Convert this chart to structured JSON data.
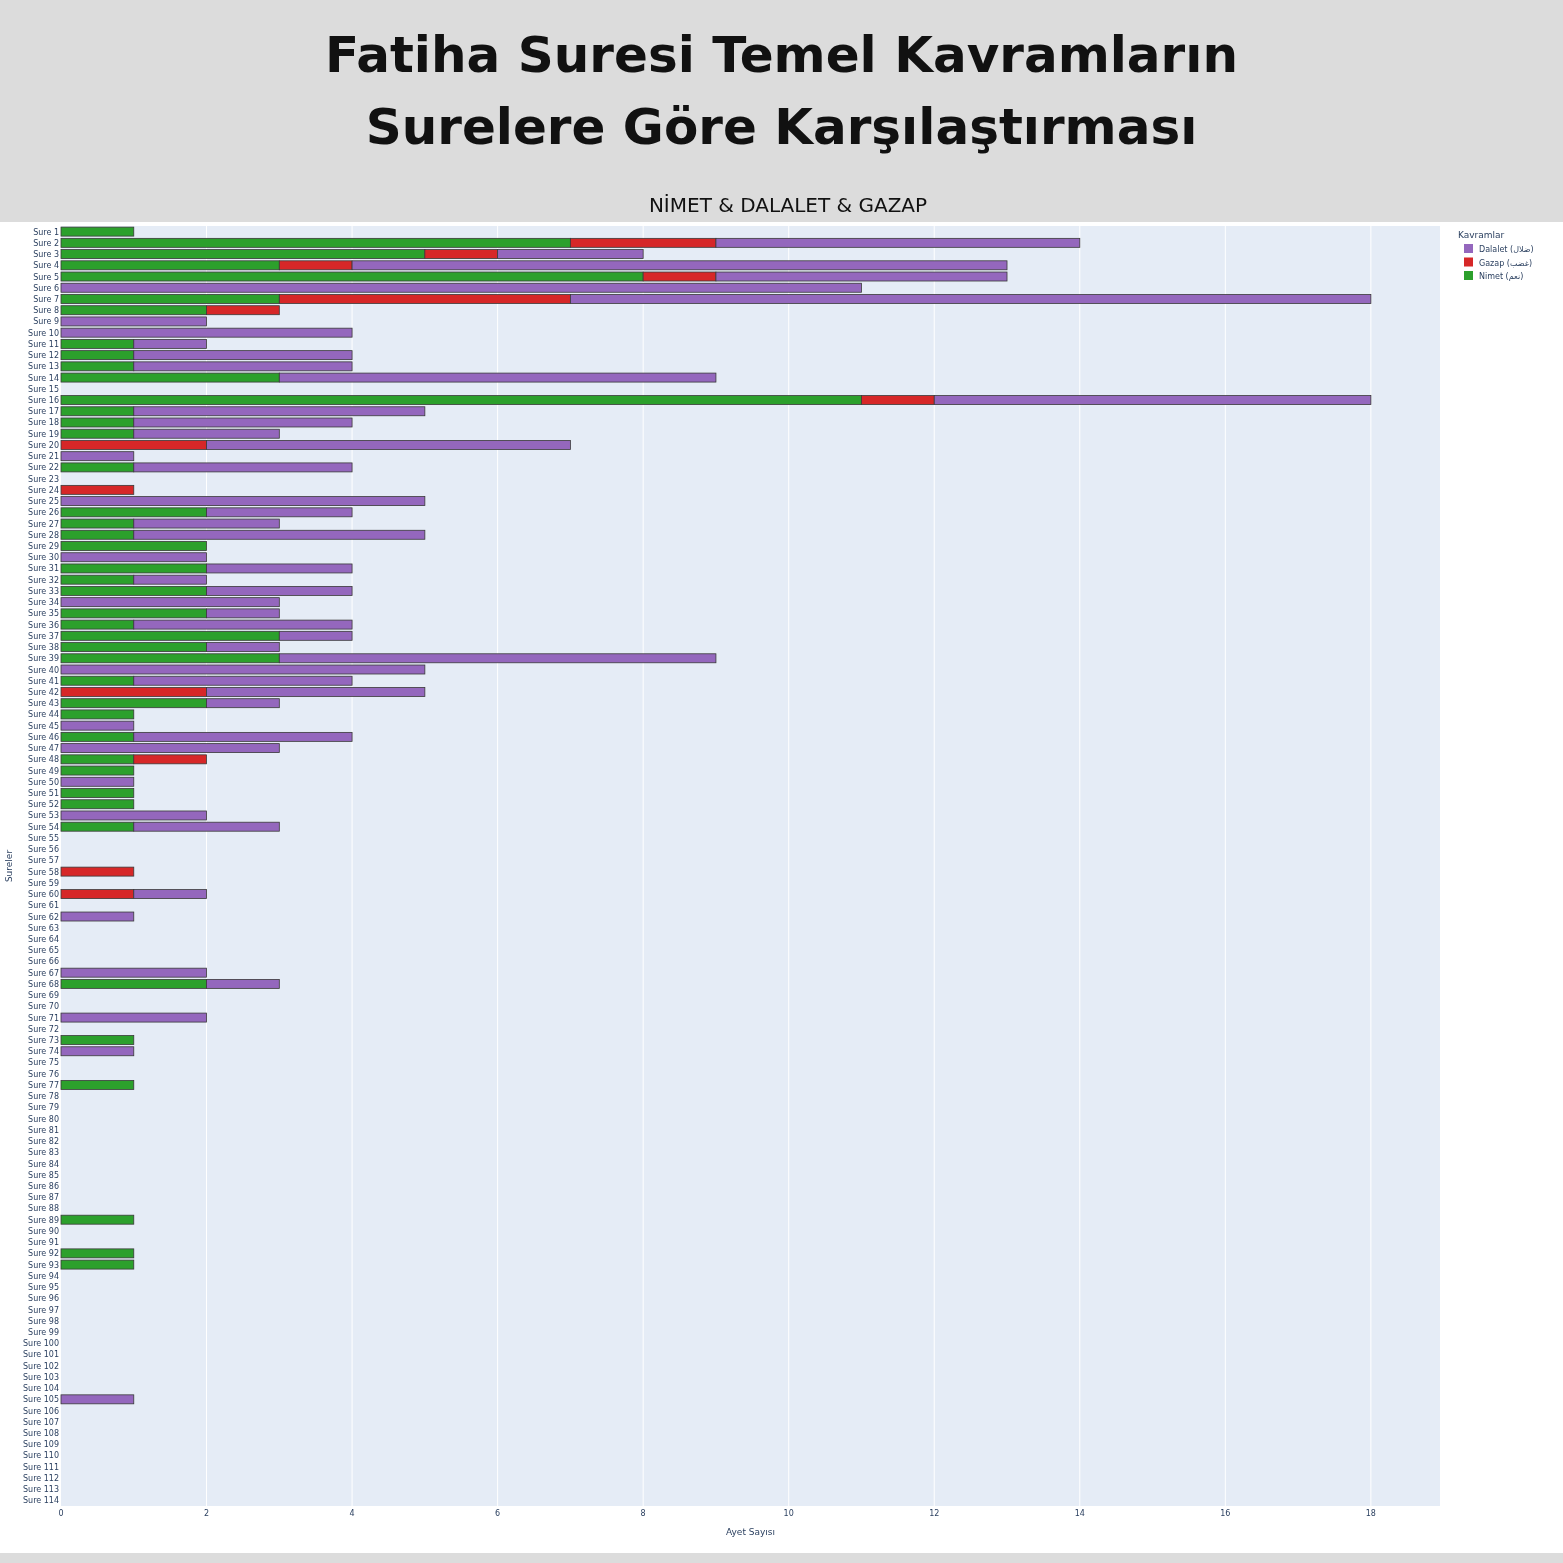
{
  "chart_data": {
    "type": "bar",
    "orientation": "horizontal",
    "stacked": true,
    "title": "Fatiha Suresi Temel Kavramların Surelere Göre Karşılaştırması",
    "subtitle": "NİMET & DALALET & GAZAP",
    "xlabel": "Ayet Sayısı",
    "ylabel": "Sureler",
    "legend_title": "Kavramlar",
    "categories": [
      "Sure 1",
      "Sure 2",
      "Sure 3",
      "Sure 4",
      "Sure 5",
      "Sure 6",
      "Sure 7",
      "Sure 8",
      "Sure 9",
      "Sure 10",
      "Sure 11",
      "Sure 12",
      "Sure 13",
      "Sure 14",
      "Sure 15",
      "Sure 16",
      "Sure 17",
      "Sure 18",
      "Sure 19",
      "Sure 20",
      "Sure 21",
      "Sure 22",
      "Sure 23",
      "Sure 24",
      "Sure 25",
      "Sure 26",
      "Sure 27",
      "Sure 28",
      "Sure 29",
      "Sure 30",
      "Sure 31",
      "Sure 32",
      "Sure 33",
      "Sure 34",
      "Sure 35",
      "Sure 36",
      "Sure 37",
      "Sure 38",
      "Sure 39",
      "Sure 40",
      "Sure 41",
      "Sure 42",
      "Sure 43",
      "Sure 44",
      "Sure 45",
      "Sure 46",
      "Sure 47",
      "Sure 48",
      "Sure 49",
      "Sure 50",
      "Sure 51",
      "Sure 52",
      "Sure 53",
      "Sure 54",
      "Sure 55",
      "Sure 56",
      "Sure 57",
      "Sure 58",
      "Sure 59",
      "Sure 60",
      "Sure 61",
      "Sure 62",
      "Sure 63",
      "Sure 64",
      "Sure 65",
      "Sure 66",
      "Sure 67",
      "Sure 68",
      "Sure 69",
      "Sure 70",
      "Sure 71",
      "Sure 72",
      "Sure 73",
      "Sure 74",
      "Sure 75",
      "Sure 76",
      "Sure 77",
      "Sure 78",
      "Sure 79",
      "Sure 80",
      "Sure 81",
      "Sure 82",
      "Sure 83",
      "Sure 84",
      "Sure 85",
      "Sure 86",
      "Sure 87",
      "Sure 88",
      "Sure 89",
      "Sure 90",
      "Sure 91",
      "Sure 92",
      "Sure 93",
      "Sure 94",
      "Sure 95",
      "Sure 96",
      "Sure 97",
      "Sure 98",
      "Sure 99",
      "Sure 100",
      "Sure 101",
      "Sure 102",
      "Sure 103",
      "Sure 104",
      "Sure 105",
      "Sure 106",
      "Sure 107",
      "Sure 108",
      "Sure 109",
      "Sure 110",
      "Sure 111",
      "Sure 112",
      "Sure 113",
      "Sure 114"
    ],
    "series": [
      {
        "name": "Nimet (نعم)",
        "color": "#2ca02c",
        "values": [
          1,
          7,
          5,
          3,
          8,
          0,
          3,
          2,
          0,
          0,
          1,
          1,
          1,
          3,
          0,
          11,
          1,
          1,
          1,
          0,
          0,
          1,
          0,
          0,
          0,
          2,
          1,
          1,
          2,
          0,
          2,
          1,
          2,
          0,
          2,
          1,
          3,
          2,
          3,
          0,
          1,
          0,
          2,
          1,
          0,
          1,
          0,
          1,
          1,
          0,
          1,
          1,
          0,
          1,
          0,
          0,
          0,
          0,
          0,
          0,
          0,
          0,
          0,
          0,
          0,
          0,
          0,
          2,
          0,
          0,
          0,
          0,
          1,
          0,
          0,
          0,
          1,
          0,
          0,
          0,
          0,
          0,
          0,
          0,
          0,
          0,
          0,
          0,
          1,
          0,
          0,
          1,
          1,
          0,
          0,
          0,
          0,
          0,
          0,
          0,
          0,
          0,
          0,
          0,
          0,
          0,
          0,
          0,
          0,
          0,
          0,
          0,
          0,
          0
        ]
      },
      {
        "name": "Gazap (غضب)",
        "color": "#d62728",
        "values": [
          0,
          2,
          1,
          1,
          1,
          0,
          4,
          1,
          0,
          0,
          0,
          0,
          0,
          0,
          0,
          1,
          0,
          0,
          0,
          2,
          0,
          0,
          0,
          1,
          0,
          0,
          0,
          0,
          0,
          0,
          0,
          0,
          0,
          0,
          0,
          0,
          0,
          0,
          0,
          0,
          0,
          2,
          0,
          0,
          0,
          0,
          0,
          1,
          0,
          0,
          0,
          0,
          0,
          0,
          0,
          0,
          0,
          1,
          0,
          1,
          0,
          0,
          0,
          0,
          0,
          0,
          0,
          0,
          0,
          0,
          0,
          0,
          0,
          0,
          0,
          0,
          0,
          0,
          0,
          0,
          0,
          0,
          0,
          0,
          0,
          0,
          0,
          0,
          0,
          0,
          0,
          0,
          0,
          0,
          0,
          0,
          0,
          0,
          0,
          0,
          0,
          0,
          0,
          0,
          0,
          0,
          0,
          0,
          0,
          0,
          0,
          0,
          0,
          0
        ]
      },
      {
        "name": "Dalalet (ضلال)",
        "color": "#9467bd",
        "values": [
          0,
          5,
          2,
          9,
          4,
          11,
          11,
          0,
          2,
          4,
          1,
          3,
          3,
          6,
          0,
          6,
          4,
          3,
          2,
          5,
          1,
          3,
          0,
          0,
          5,
          2,
          2,
          4,
          0,
          2,
          2,
          1,
          2,
          3,
          1,
          3,
          1,
          1,
          6,
          5,
          3,
          3,
          1,
          0,
          1,
          3,
          3,
          0,
          0,
          1,
          0,
          0,
          2,
          2,
          0,
          0,
          0,
          0,
          0,
          1,
          0,
          1,
          0,
          0,
          0,
          0,
          2,
          1,
          0,
          0,
          2,
          0,
          0,
          1,
          0,
          0,
          0,
          0,
          0,
          0,
          0,
          0,
          0,
          0,
          0,
          0,
          0,
          0,
          0,
          0,
          0,
          0,
          0,
          0,
          0,
          0,
          0,
          0,
          0,
          0,
          0,
          0,
          0,
          0,
          1,
          0,
          0,
          0,
          0,
          0,
          0,
          0,
          0,
          0
        ]
      }
    ],
    "xlim": [
      0,
      18.95
    ],
    "xticks": [
      0,
      2,
      4,
      6,
      8,
      10,
      12,
      14,
      16,
      18
    ],
    "grid": "x",
    "legend": "top right"
  }
}
